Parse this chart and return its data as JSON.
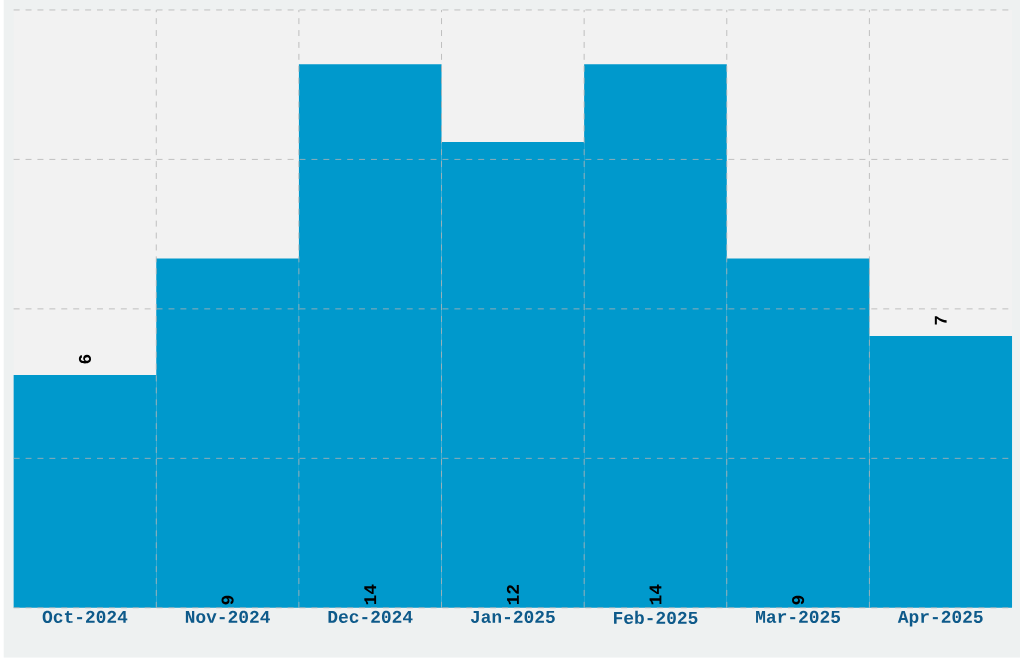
{
  "chart_data": {
    "type": "bar",
    "categories": [
      "Oct-2024",
      "Nov-2024",
      "Dec-2024",
      "Jan-2025",
      "Feb-2025",
      "Mar-2025",
      "Apr-2025"
    ],
    "values": [
      6,
      9,
      14,
      12,
      14,
      9,
      7
    ],
    "color": "#0099cc",
    "ylim": [
      0,
      15.4
    ],
    "yticks": [
      {
        "value": 0,
        "label": null
      },
      {
        "value": 3.85,
        "label": null
      },
      {
        "value": 7.7,
        "label": null
      },
      {
        "value": 11.55,
        "label": null
      },
      {
        "value": 15.4,
        "label": null
      }
    ],
    "tick_labels": "x",
    "data_labels": true,
    "grid": true
  }
}
